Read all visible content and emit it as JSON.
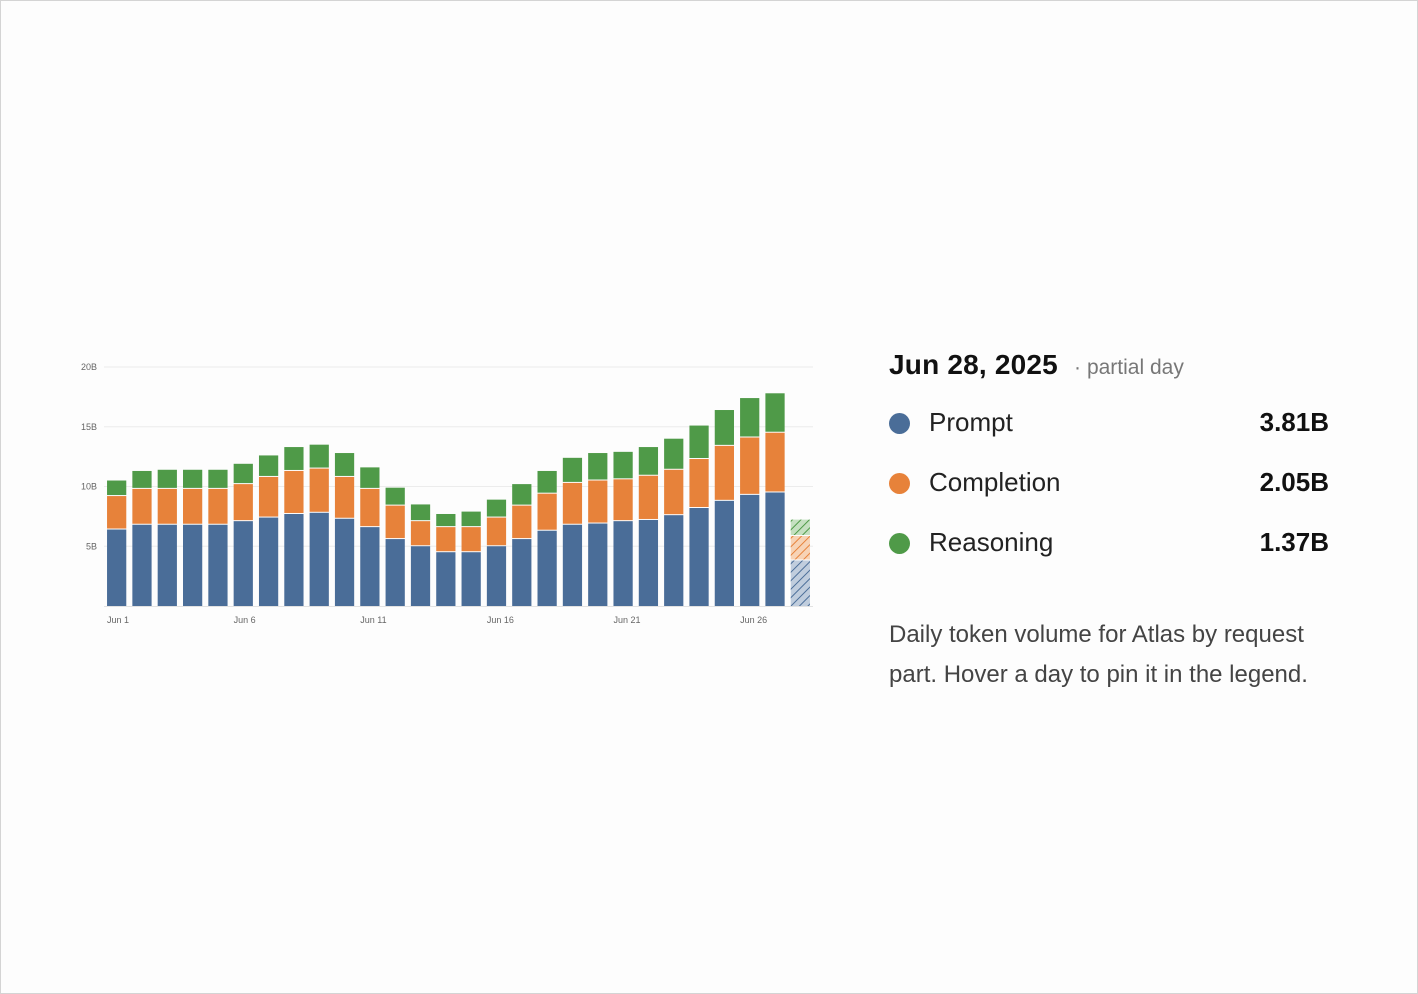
{
  "chart_data": {
    "type": "bar",
    "stacked": true,
    "categories": [
      "Jun 1",
      "Jun 2",
      "Jun 3",
      "Jun 4",
      "Jun 5",
      "Jun 6",
      "Jun 7",
      "Jun 8",
      "Jun 9",
      "Jun 10",
      "Jun 11",
      "Jun 12",
      "Jun 13",
      "Jun 14",
      "Jun 15",
      "Jun 16",
      "Jun 17",
      "Jun 18",
      "Jun 19",
      "Jun 20",
      "Jun 21",
      "Jun 22",
      "Jun 23",
      "Jun 24",
      "Jun 25",
      "Jun 26",
      "Jun 27",
      "Jun 28"
    ],
    "x_tick_labels": [
      "Jun 1",
      "Jun 6",
      "Jun 11",
      "Jun 16",
      "Jun 21",
      "Jun 26"
    ],
    "y_tick_labels": [
      "5B",
      "10B",
      "15B",
      "20B"
    ],
    "y_ticks": [
      5,
      10,
      15,
      20
    ],
    "ylim": [
      0,
      20
    ],
    "unit": "B",
    "partial_index": 27,
    "series": [
      {
        "name": "Prompt",
        "color": "#4a6d98",
        "values": [
          6.4,
          6.8,
          6.8,
          6.8,
          6.8,
          7.1,
          7.4,
          7.7,
          7.8,
          7.3,
          6.6,
          5.6,
          5.0,
          4.5,
          4.5,
          5.0,
          5.6,
          6.3,
          6.8,
          6.9,
          7.1,
          7.2,
          7.6,
          8.2,
          8.8,
          9.3,
          9.5,
          3.81
        ]
      },
      {
        "name": "Completion",
        "color": "#e7823a",
        "values": [
          2.8,
          3.0,
          3.0,
          3.0,
          3.0,
          3.1,
          3.4,
          3.6,
          3.7,
          3.5,
          3.2,
          2.8,
          2.1,
          2.1,
          2.1,
          2.4,
          2.8,
          3.1,
          3.5,
          3.6,
          3.5,
          3.7,
          3.8,
          4.1,
          4.6,
          4.8,
          5.0,
          2.05
        ]
      },
      {
        "name": "Reasoning",
        "color": "#4f9a48",
        "values": [
          1.3,
          1.5,
          1.6,
          1.6,
          1.6,
          1.7,
          1.8,
          2.0,
          2.0,
          2.0,
          1.8,
          1.5,
          1.4,
          1.1,
          1.3,
          1.5,
          1.8,
          1.9,
          2.1,
          2.3,
          2.3,
          2.4,
          2.6,
          2.8,
          3.0,
          3.3,
          3.3,
          1.37
        ]
      }
    ]
  },
  "legend": {
    "date": "Jun 28, 2025",
    "separator": "·",
    "note": "partial day",
    "items": [
      {
        "name": "Prompt",
        "value": "3.81B",
        "color": "#4a6d98"
      },
      {
        "name": "Completion",
        "value": "2.05B",
        "color": "#e7823a"
      },
      {
        "name": "Reasoning",
        "value": "1.37B",
        "color": "#4f9a48"
      }
    ]
  },
  "caption": "Daily token volume for Atlas by request part. Hover a day to pin it in the legend."
}
